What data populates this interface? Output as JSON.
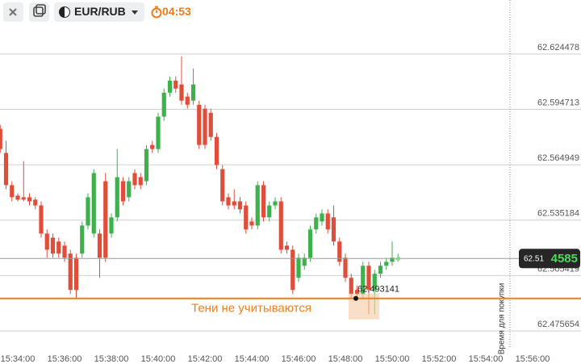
{
  "header": {
    "symbol": "EUR/RUB",
    "timer": "04:53"
  },
  "chart_data": {
    "type": "candlestick",
    "x": [
      "15:33:15",
      "15:33:30",
      "15:33:45",
      "15:34:00",
      "15:34:15",
      "15:34:30",
      "15:34:45",
      "15:35:00",
      "15:35:15",
      "15:35:30",
      "15:35:45",
      "15:36:00",
      "15:36:15",
      "15:36:30",
      "15:36:45",
      "15:37:00",
      "15:37:15",
      "15:37:30",
      "15:37:45",
      "15:38:00",
      "15:38:15",
      "15:38:30",
      "15:38:45",
      "15:39:00",
      "15:39:15",
      "15:39:30",
      "15:39:45",
      "15:40:00",
      "15:40:15",
      "15:40:30",
      "15:40:45",
      "15:41:00",
      "15:41:15",
      "15:41:30",
      "15:41:45",
      "15:42:00",
      "15:42:15",
      "15:42:30",
      "15:42:45",
      "15:43:00",
      "15:43:15",
      "15:43:30",
      "15:43:45",
      "15:44:00",
      "15:44:15",
      "15:44:30",
      "15:44:45",
      "15:45:00",
      "15:45:15",
      "15:45:30",
      "15:45:45",
      "15:46:00",
      "15:46:15",
      "15:46:30",
      "15:46:45",
      "15:47:00",
      "15:47:15",
      "15:47:30",
      "15:47:45",
      "15:48:00",
      "15:48:15",
      "15:48:30",
      "15:48:45",
      "15:49:00",
      "15:49:15",
      "15:49:30",
      "15:49:45",
      "15:50:00",
      "15:50:15"
    ],
    "open": [
      62.5843,
      62.5713,
      62.554,
      62.5484,
      62.5475,
      62.5475,
      62.5462,
      62.5431,
      62.528,
      62.5258,
      62.5237,
      62.5215,
      62.5172,
      62.515,
      62.5172,
      62.5323,
      62.528,
      62.528,
      62.5561,
      62.528,
      62.5367,
      62.5561,
      62.5475,
      62.5605,
      62.5583,
      62.5561,
      62.5756,
      62.5734,
      62.5908,
      62.6037,
      62.6102,
      62.6081,
      62.6016,
      62.5994,
      62.5972,
      62.5951,
      62.5929,
      62.5799,
      62.5626,
      62.5475,
      62.5453,
      62.5453,
      62.5431,
      62.5345,
      62.5323,
      62.554,
      62.5367,
      62.5431,
      62.5453,
      62.5215,
      62.5193,
      62.5042,
      62.5107,
      62.515,
      62.5302,
      62.5345,
      62.5388,
      62.5367,
      62.5237,
      62.515,
      62.5042,
      62.4977,
      62.4955,
      62.5107,
      62.4977,
      62.5064,
      62.5107,
      62.5128,
      62.514
    ],
    "high": [
      62.5864,
      62.5778,
      62.5561,
      62.5496,
      62.5669,
      62.5496,
      62.5475,
      62.5453,
      62.5302,
      62.528,
      62.5258,
      62.5237,
      62.5193,
      62.5172,
      62.5345,
      62.5496,
      62.5626,
      62.5302,
      62.5605,
      62.5388,
      62.5734,
      62.5583,
      62.5583,
      62.5626,
      62.5605,
      62.5756,
      62.5778,
      62.5929,
      62.6059,
      62.6124,
      62.6124,
      62.6232,
      62.6037,
      62.6167,
      62.5994,
      62.5972,
      62.5951,
      62.5821,
      62.5648,
      62.5496,
      62.5518,
      62.5475,
      62.5453,
      62.5367,
      62.5561,
      62.5561,
      62.5453,
      62.5475,
      62.5475,
      62.5237,
      62.5215,
      62.5172,
      62.5172,
      62.5323,
      62.5388,
      62.541,
      62.541,
      62.5431,
      62.5258,
      62.5172,
      62.5064,
      62.4999,
      62.5128,
      62.5128,
      62.5085,
      62.5128,
      62.515,
      62.5237,
      62.5172
    ],
    "low": [
      62.5713,
      62.5518,
      62.5453,
      62.5453,
      62.5453,
      62.5431,
      62.541,
      62.5258,
      62.515,
      62.515,
      62.515,
      62.5128,
      62.4955,
      62.4934,
      62.515,
      62.5302,
      62.5258,
      62.5042,
      62.5128,
      62.5258,
      62.5345,
      62.5431,
      62.5453,
      62.5518,
      62.5518,
      62.554,
      62.5713,
      62.5713,
      62.5886,
      62.6016,
      62.6037,
      62.5972,
      62.5951,
      62.5972,
      62.5734,
      62.5734,
      62.5778,
      62.5626,
      62.5431,
      62.541,
      62.541,
      62.5388,
      62.528,
      62.5302,
      62.5302,
      62.5345,
      62.5345,
      62.541,
      62.5172,
      62.5172,
      62.4955,
      62.502,
      62.5085,
      62.5128,
      62.528,
      62.5323,
      62.528,
      62.5215,
      62.5107,
      62.502,
      62.4934,
      62.4934,
      62.4934,
      62.4847,
      62.4847,
      62.5042,
      62.5085,
      62.5107,
      62.5128
    ],
    "close": [
      62.5734,
      62.554,
      62.5475,
      62.5462,
      62.5462,
      62.5453,
      62.5431,
      62.528,
      62.5193,
      62.5172,
      62.5172,
      62.515,
      62.4977,
      62.4977,
      62.5323,
      62.5475,
      62.5605,
      62.515,
      62.515,
      62.5367,
      62.5583,
      62.5453,
      62.5561,
      62.554,
      62.554,
      62.5734,
      62.5734,
      62.5908,
      62.6037,
      62.6102,
      62.6059,
      62.5994,
      62.5972,
      62.6081,
      62.5756,
      62.5756,
      62.5799,
      62.5648,
      62.5453,
      62.5431,
      62.5431,
      62.541,
      62.5302,
      62.5323,
      62.554,
      62.5367,
      62.5431,
      62.5453,
      62.5193,
      62.5193,
      62.4977,
      62.515,
      62.515,
      62.5302,
      62.5367,
      62.5388,
      62.5302,
      62.5237,
      62.5128,
      62.5042,
      62.4955,
      62.4955,
      62.5107,
      62.4977,
      62.5064,
      62.5107,
      62.5128,
      62.515,
      62.5146
    ],
    "up_color": "#3cb34a",
    "down_color": "#e04e3a",
    "ylim": [
      62.467,
      62.6535
    ],
    "yticks": [
      62.624478,
      62.594713,
      62.564949,
      62.535184,
      62.505419,
      62.475654
    ],
    "xticks": [
      "15:34:00",
      "15:36:00",
      "15:38:00",
      "15:40:00",
      "15:42:00",
      "15:44:00",
      "15:46:00",
      "15:48:00",
      "15:50:00",
      "15:52:00",
      "15:54:00",
      "15:56:00"
    ],
    "grid": true,
    "current_price": 62.514585,
    "current_price_labels": [
      "62.51",
      "4585"
    ],
    "level": 62.493141,
    "annotation": "Тени не учитываются",
    "deadline_label": "Время для покупки"
  }
}
